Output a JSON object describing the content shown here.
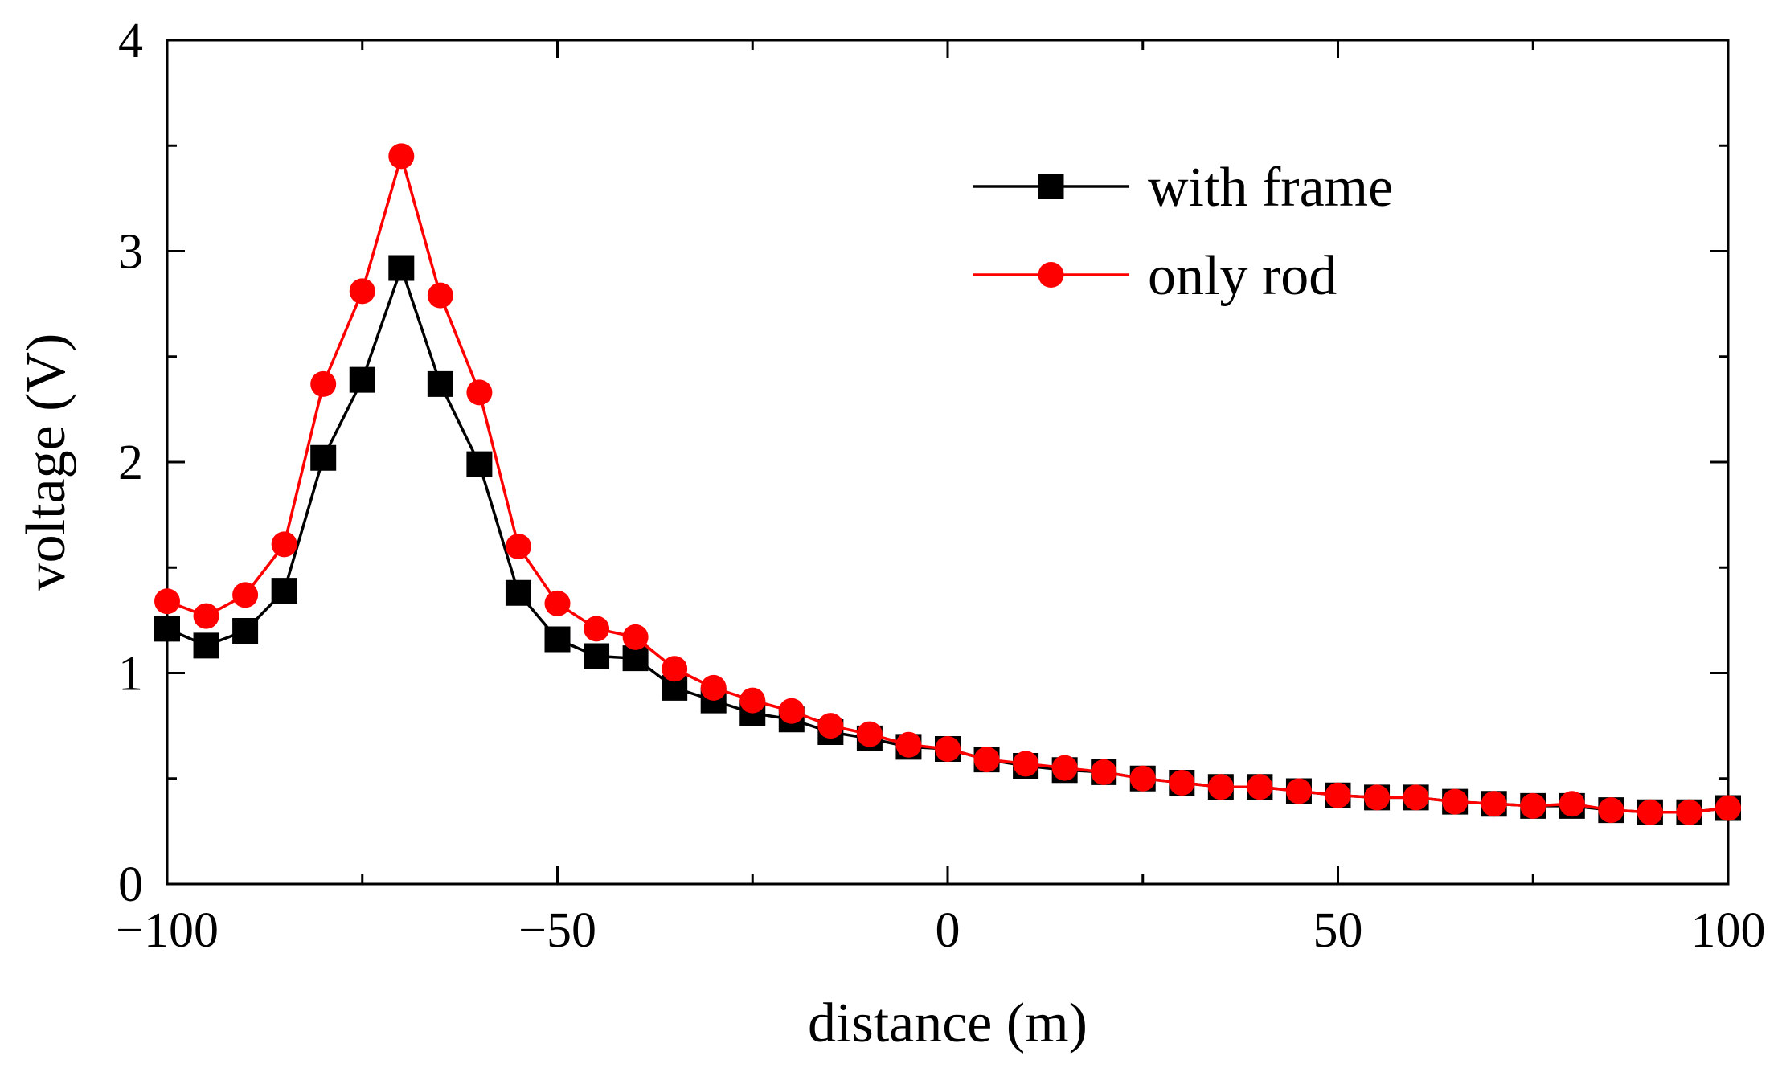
{
  "chart_data": {
    "type": "line",
    "title": "",
    "xlabel": "distance (m)",
    "ylabel": "voltage (V)",
    "xlim": [
      -100,
      100
    ],
    "ylim": [
      0,
      4
    ],
    "xticks": [
      -100,
      -50,
      0,
      50,
      100
    ],
    "xtick_labels": [
      "−100",
      "−50",
      "0",
      "50",
      "100"
    ],
    "yticks": [
      0,
      1,
      2,
      3,
      4
    ],
    "ytick_labels": [
      "0",
      "1",
      "2",
      "3",
      "4"
    ],
    "grid": false,
    "legend_position": "top-right",
    "x": [
      -100,
      -95,
      -90,
      -85,
      -80,
      -75,
      -70,
      -65,
      -60,
      -55,
      -50,
      -45,
      -40,
      -35,
      -30,
      -25,
      -20,
      -15,
      -10,
      -5,
      0,
      5,
      10,
      15,
      20,
      25,
      30,
      35,
      40,
      45,
      50,
      55,
      60,
      65,
      70,
      75,
      80,
      85,
      90,
      95,
      100
    ],
    "series": [
      {
        "name": "with frame",
        "color": "#000000",
        "marker": "square",
        "values": [
          1.21,
          1.13,
          1.2,
          1.39,
          2.02,
          2.39,
          2.92,
          2.37,
          1.99,
          1.38,
          1.16,
          1.08,
          1.07,
          0.93,
          0.87,
          0.81,
          0.78,
          0.72,
          0.69,
          0.65,
          0.64,
          0.59,
          0.56,
          0.54,
          0.53,
          0.5,
          0.48,
          0.46,
          0.46,
          0.44,
          0.42,
          0.41,
          0.41,
          0.39,
          0.38,
          0.37,
          0.37,
          0.35,
          0.34,
          0.34,
          0.36
        ]
      },
      {
        "name": "only rod",
        "color": "#ff0000",
        "marker": "circle",
        "values": [
          1.34,
          1.27,
          1.37,
          1.61,
          2.37,
          2.81,
          3.45,
          2.79,
          2.33,
          1.6,
          1.33,
          1.21,
          1.17,
          1.02,
          0.93,
          0.87,
          0.82,
          0.75,
          0.71,
          0.66,
          0.64,
          0.59,
          0.57,
          0.55,
          0.53,
          0.5,
          0.48,
          0.46,
          0.46,
          0.44,
          0.42,
          0.41,
          0.41,
          0.39,
          0.38,
          0.37,
          0.38,
          0.35,
          0.34,
          0.34,
          0.36
        ]
      }
    ]
  }
}
